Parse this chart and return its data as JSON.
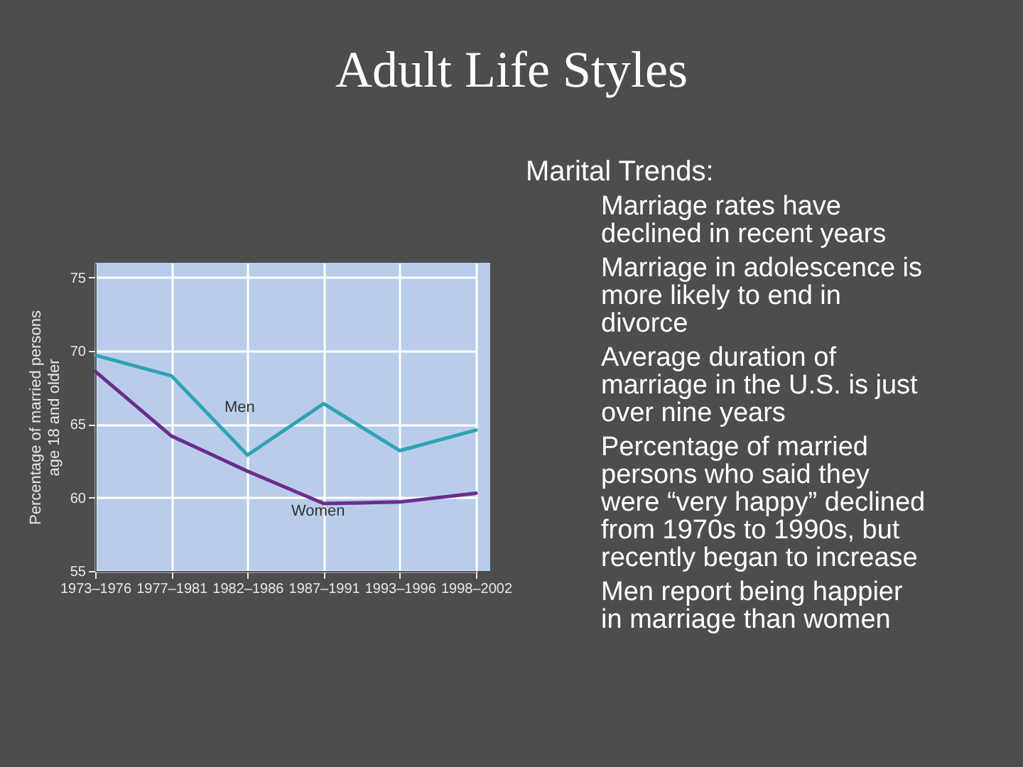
{
  "chart_data": {
    "type": "line",
    "title": "Adult Life Styles",
    "subtitle": "Marital Trends:",
    "ylabel": "Percentage of married persons age 18 and older",
    "categories": [
      "1973–1976",
      "1977–1981",
      "1982–1986",
      "1987–1991",
      "1993–1996",
      "1998–2002"
    ],
    "series": [
      {
        "name": "Men",
        "color": "#2fa3b3",
        "values": [
          69.7,
          68.3,
          62.9,
          66.4,
          63.2,
          64.6
        ]
      },
      {
        "name": "Women",
        "color": "#6b2d8c",
        "values": [
          68.6,
          64.2,
          61.8,
          59.6,
          59.7,
          60.3
        ]
      }
    ],
    "ylim": [
      55,
      76
    ],
    "yticks": [
      55,
      60,
      65,
      70,
      75
    ],
    "grid": true,
    "annotations": [
      "Marriage rates have declined in recent years",
      "Marriage in adolescence is more likely to end in divorce",
      "Average duration of marriage in the U.S. is just over nine years",
      "Percentage of married persons who said they were “very happy” declined from 1970s to 1990s, but recently began to increase",
      "Men report being happier in marriage than women"
    ]
  }
}
